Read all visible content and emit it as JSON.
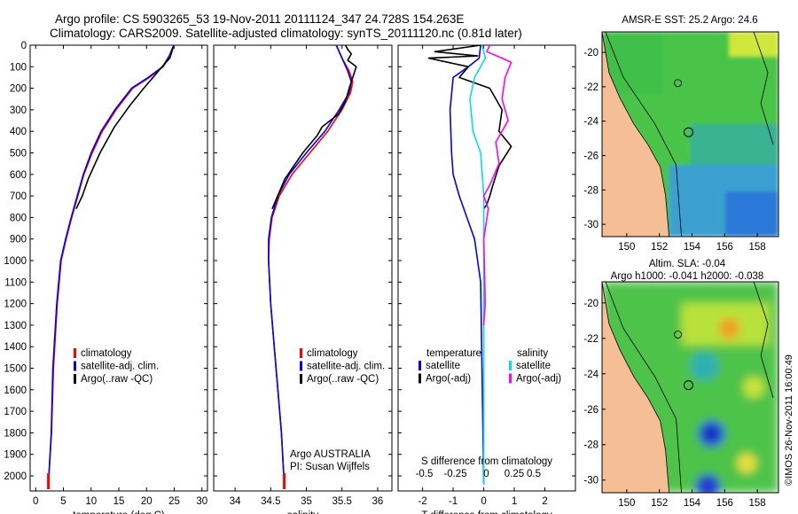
{
  "header": {
    "title_line1": "Argo profile: CS 5903265_53 19-Nov-2011 20111124_347 24.728S 154.263E",
    "title_line2": "Climatology: CARS2009. Satellite-adjusted climatology: synTS_20111120.nc (0.81d later)"
  },
  "colors": {
    "climatology": "#ff0000",
    "satellite": "#0000ff",
    "argo": "#000000",
    "t_satellite": "#0000ff",
    "s_satellite": "#00e0e0",
    "s_argo": "#ff00ff",
    "land": "#f5be94"
  },
  "chart_data": [
    {
      "id": "temperature",
      "type": "line",
      "xlabel": "temperature (deg C)",
      "xlim": [
        -1,
        31
      ],
      "xticks": [
        "0",
        "5",
        "10",
        "15",
        "20",
        "25",
        "30"
      ],
      "yticks": [
        "0",
        "100",
        "200",
        "300",
        "400",
        "500",
        "600",
        "700",
        "800",
        "900",
        "1000",
        "1100",
        "1200",
        "1300",
        "1400",
        "1500",
        "1600",
        "1700",
        "1800",
        "1900",
        "2000"
      ],
      "ylim": [
        2070,
        0
      ],
      "legend": [
        {
          "label": "climatology",
          "color": "#ff0000"
        },
        {
          "label": "satellite-adj. clim.",
          "color": "#0000ff"
        },
        {
          "label": "Argo(..raw -QC)",
          "color": "#000000"
        }
      ],
      "series": [
        {
          "name": "climatology",
          "color": "#ff0000",
          "x": [
            25.0,
            24.2,
            23.0,
            20.5,
            17.5,
            14.5,
            12.0,
            10.2,
            8.7,
            7.6,
            6.5,
            5.5,
            4.6,
            3.9,
            3.2,
            2.85,
            2.3
          ],
          "y": [
            0,
            50,
            100,
            150,
            200,
            300,
            400,
            500,
            600,
            700,
            800,
            900,
            1000,
            1200,
            1500,
            1800,
            2040
          ]
        },
        {
          "name": "satellite-adj. clim.",
          "color": "#0000ff",
          "x": [
            24.9,
            24.1,
            22.9,
            20.3,
            17.3,
            14.3,
            11.8,
            10.0,
            8.6,
            7.5,
            6.4,
            5.4,
            4.5,
            3.8,
            3.1,
            2.8,
            2.3
          ],
          "y": [
            0,
            50,
            100,
            150,
            200,
            300,
            400,
            500,
            600,
            700,
            800,
            900,
            1000,
            1200,
            1500,
            1800,
            2040
          ]
        },
        {
          "name": "Argo(..raw -QC)",
          "color": "#000000",
          "x": [
            24.8,
            24.2,
            22.8,
            21.5,
            19.5,
            17.0,
            14.2,
            11.6,
            9.5,
            8.4,
            7.3
          ],
          "y": [
            10,
            60,
            100,
            140,
            200,
            280,
            380,
            500,
            620,
            700,
            760
          ]
        }
      ]
    },
    {
      "id": "salinity",
      "type": "line",
      "xlabel": "salinity",
      "xlim": [
        33.7,
        36.2
      ],
      "xticks": [
        "34",
        "34.5",
        "35",
        "35.5",
        "36"
      ],
      "ylim": [
        2070,
        0
      ],
      "legend": [
        {
          "label": "climatology",
          "color": "#ff0000"
        },
        {
          "label": "satellite-adj. clim.",
          "color": "#0000ff"
        },
        {
          "label": "Argo(..raw -QC)",
          "color": "#000000"
        }
      ],
      "annotation_line1": "Argo AUSTRALIA",
      "annotation_line2": "PI: Susan Wijffels",
      "series": [
        {
          "name": "climatology",
          "color": "#ff0000",
          "x": [
            35.42,
            35.5,
            35.6,
            35.65,
            35.62,
            35.5,
            35.3,
            35.05,
            34.8,
            34.62,
            34.52,
            34.48,
            34.47,
            34.5,
            34.55,
            34.6,
            34.65,
            34.69
          ],
          "y": [
            0,
            60,
            120,
            170,
            220,
            300,
            400,
            500,
            600,
            700,
            800,
            900,
            1000,
            1200,
            1400,
            1600,
            1800,
            2040
          ]
        },
        {
          "name": "satellite-adj. clim.",
          "color": "#0000ff",
          "x": [
            35.42,
            35.5,
            35.58,
            35.63,
            35.6,
            35.46,
            35.26,
            35.0,
            34.76,
            34.6,
            34.51,
            34.47,
            34.47,
            34.5,
            34.55,
            34.6,
            34.65,
            34.69
          ],
          "y": [
            0,
            60,
            120,
            170,
            220,
            300,
            400,
            500,
            600,
            700,
            800,
            900,
            1000,
            1200,
            1400,
            1600,
            1800,
            2040
          ]
        },
        {
          "name": "Argo(..raw -QC)",
          "color": "#000000",
          "x": [
            35.55,
            35.58,
            35.63,
            35.58,
            35.7,
            35.66,
            35.6,
            35.55,
            35.45,
            35.22,
            35.15,
            34.95,
            34.7,
            34.52
          ],
          "y": [
            0,
            20,
            40,
            70,
            100,
            140,
            200,
            260,
            320,
            380,
            420,
            500,
            620,
            760
          ]
        }
      ]
    },
    {
      "id": "differences",
      "type": "line",
      "xlabel_top": "S difference from climatology",
      "xlabel": "T difference from climatology",
      "xlim": [
        -2.8,
        3.0
      ],
      "xticks": [
        "-2",
        "-1",
        "0",
        "1",
        "2"
      ],
      "xticks_top": [
        "-0.5",
        "-0.25",
        "0",
        "0.25",
        "0.5"
      ],
      "ylim": [
        2070,
        0
      ],
      "legend": [
        {
          "label": "temperature",
          "color": "#000000"
        },
        {
          "label": "satellite",
          "color": "#0000ff"
        },
        {
          "label": "Argo(-adj)",
          "color": "#000000"
        },
        {
          "label": "salinity",
          "color": "#000000"
        },
        {
          "label": "satellite",
          "color": "#00e0e0"
        },
        {
          "label": "Argo(-adj)",
          "color": "#ff00ff"
        }
      ],
      "series": [
        {
          "name": "T satellite",
          "color": "#0000ff",
          "x": [
            -0.1,
            -0.15,
            -0.5,
            -1.0,
            -1.1,
            -1.05,
            -1.0,
            -0.8,
            -0.55,
            -0.3,
            -0.1,
            0
          ],
          "y": [
            0,
            60,
            100,
            150,
            300,
            500,
            600,
            700,
            800,
            900,
            1100,
            2040
          ]
        },
        {
          "name": "T Argo(-adj)",
          "color": "#000000",
          "x": [
            -0.1,
            -1.6,
            -0.2,
            -1.8,
            -0.5,
            -0.8,
            0.2,
            0.6,
            0.5,
            0.9,
            0.5,
            0.3,
            0.2,
            0.1,
            0.0
          ],
          "y": [
            0,
            30,
            50,
            60,
            100,
            150,
            200,
            300,
            400,
            470,
            560,
            650,
            700,
            740,
            760
          ]
        },
        {
          "name": "S satellite",
          "color": "#00e0e0",
          "x": [
            -0.05,
            0.05,
            -0.1,
            -0.3,
            -0.45,
            -0.35,
            -0.1,
            0,
            0,
            0
          ],
          "y": [
            0,
            60,
            100,
            150,
            250,
            400,
            500,
            700,
            1000,
            2040
          ]
        },
        {
          "name": "S Argo(-adj)",
          "color": "#ff00ff",
          "x": [
            0.2,
            0.1,
            0.6,
            0.9,
            0.7,
            0.6,
            0.8,
            0.4,
            0.5,
            0.2,
            0.0,
            0.15,
            0.0,
            0.05,
            0.0
          ],
          "y": [
            0,
            30,
            60,
            80,
            150,
            250,
            350,
            450,
            550,
            650,
            700,
            760,
            900,
            1200,
            1300
          ]
        }
      ]
    },
    {
      "id": "sst_map",
      "type": "heatmap",
      "title": "AMSR-E SST: 25.2  Argo: 24.6",
      "xticks": [
        "150",
        "152",
        "154",
        "156",
        "158"
      ],
      "yticks": [
        "-20",
        "-22",
        "-24",
        "-26",
        "-28",
        "-30"
      ]
    },
    {
      "id": "sla_map",
      "type": "heatmap",
      "title_line1": "Altim. SLA: -0.04",
      "title_line2": "Argo h1000: -0.041  h2000: -0.038",
      "xticks": [
        "150",
        "152",
        "154",
        "156",
        "158"
      ],
      "yticks": [
        "-20",
        "-22",
        "-24",
        "-26",
        "-28",
        "-30"
      ]
    }
  ],
  "credit": "©IMOS 26-Nov-2011 16:00:49"
}
